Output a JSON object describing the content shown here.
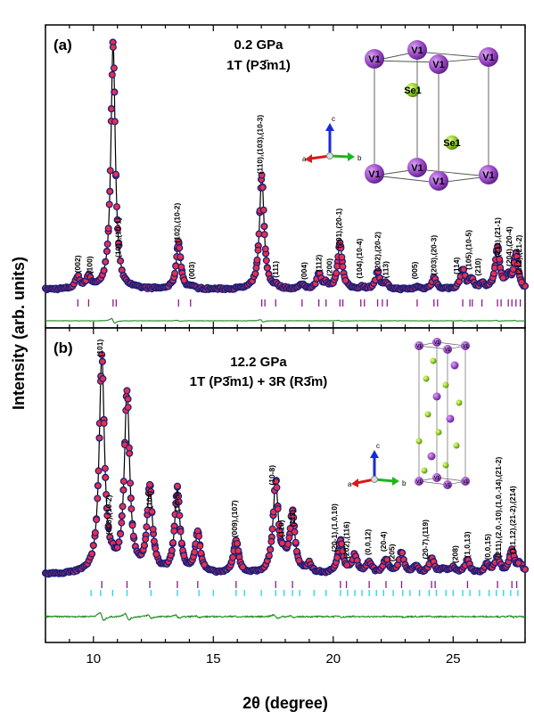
{
  "chart_data": {
    "type": "scatter",
    "xlabel": "2θ (degree)",
    "ylabel": "Intensity (arb. units)",
    "xlim": [
      8,
      28
    ],
    "xticks": [
      10,
      15,
      20,
      25
    ],
    "colors": {
      "observed_fill": "#e8304a",
      "observed_edge": "#1c1f7a",
      "calculated": "#000000",
      "difference": "#1c8a1c",
      "phase_1T": "#8b1a8b",
      "phase_3R": "#18d8ee"
    },
    "panels": [
      {
        "label": "(a)",
        "pressure": "0.2 GPa",
        "phase_line": "1T (P3̄m1)",
        "peaks": [
          {
            "x": 9.35,
            "h": 0.05
          },
          {
            "x": 9.8,
            "h": 0.05
          },
          {
            "x": 10.82,
            "h": 1.0
          },
          {
            "x": 13.55,
            "h": 0.19
          },
          {
            "x": 14.1,
            "h": 0.01
          },
          {
            "x": 17.02,
            "h": 0.47
          },
          {
            "x": 17.6,
            "h": 0.01
          },
          {
            "x": 18.7,
            "h": 0.02
          },
          {
            "x": 19.4,
            "h": 0.06
          },
          {
            "x": 19.7,
            "h": 0.02
          },
          {
            "x": 20.28,
            "h": 0.19
          },
          {
            "x": 21.2,
            "h": 0.01
          },
          {
            "x": 21.85,
            "h": 0.07
          },
          {
            "x": 22.2,
            "h": 0.02
          },
          {
            "x": 23.5,
            "h": 0.01
          },
          {
            "x": 24.2,
            "h": 0.05
          },
          {
            "x": 25.4,
            "h": 0.08
          },
          {
            "x": 25.75,
            "h": 0.04
          },
          {
            "x": 26.2,
            "h": 0.02
          },
          {
            "x": 26.85,
            "h": 0.17
          },
          {
            "x": 27.3,
            "h": 0.05
          },
          {
            "x": 27.62,
            "h": 0.14
          }
        ],
        "ticks_1T": [
          9.35,
          9.8,
          10.82,
          10.95,
          13.55,
          14.05,
          17.02,
          17.15,
          17.6,
          18.7,
          19.4,
          19.7,
          20.28,
          20.4,
          21.15,
          21.3,
          21.85,
          22.05,
          22.25,
          23.5,
          24.2,
          24.35,
          25.4,
          25.7,
          25.8,
          26.2,
          26.85,
          27.0,
          27.3,
          27.45,
          27.62,
          27.8
        ],
        "annotations": [
          {
            "x": 9.45,
            "text": "(002)"
          },
          {
            "x": 9.95,
            "text": "(100)"
          },
          {
            "x": 11.15,
            "text": "(101),(10-1)"
          },
          {
            "x": 13.6,
            "text": "(102),(10-2)"
          },
          {
            "x": 14.2,
            "text": "(003)"
          },
          {
            "x": 17.05,
            "text": "(110),(103),(10-3)"
          },
          {
            "x": 17.7,
            "text": "(111)"
          },
          {
            "x": 18.9,
            "text": "(004)"
          },
          {
            "x": 19.5,
            "text": "(112)"
          },
          {
            "x": 19.95,
            "text": "(200)"
          },
          {
            "x": 20.35,
            "text": "(201),(20-1)"
          },
          {
            "x": 21.2,
            "text": "(104),(10-4)"
          },
          {
            "x": 21.95,
            "text": "(202),(20-2)"
          },
          {
            "x": 22.3,
            "text": "(113)"
          },
          {
            "x": 23.5,
            "text": "(005)"
          },
          {
            "x": 24.3,
            "text": "(203),(20-3)"
          },
          {
            "x": 25.25,
            "text": "(114)"
          },
          {
            "x": 25.75,
            "text": "(105),(10-5)"
          },
          {
            "x": 26.15,
            "text": "(210)"
          },
          {
            "x": 26.95,
            "text": "(211),(21-1)"
          },
          {
            "x": 27.45,
            "text": "(204),(20-4)"
          },
          {
            "x": 27.85,
            "text": "(212),(21-2)"
          }
        ],
        "structure_atoms": [
          "V1",
          "V1",
          "V1",
          "V1",
          "V1",
          "V1",
          "V1",
          "V1",
          "Se1",
          "Se1"
        ],
        "axes_labels": [
          "a",
          "b",
          "c"
        ]
      },
      {
        "label": "(b)",
        "pressure": "12.2 GPa",
        "phase_line": "1T (P3̄m1) + 3R (R3̄m)",
        "peaks": [
          {
            "x": 10.35,
            "h": 0.94
          },
          {
            "x": 10.8,
            "h": 0.02
          },
          {
            "x": 11.4,
            "h": 0.78
          },
          {
            "x": 12.35,
            "h": 0.37
          },
          {
            "x": 13.5,
            "h": 0.36
          },
          {
            "x": 14.35,
            "h": 0.17
          },
          {
            "x": 15.95,
            "h": 0.14
          },
          {
            "x": 17.6,
            "h": 0.39
          },
          {
            "x": 17.95,
            "h": 0.05
          },
          {
            "x": 18.3,
            "h": 0.25
          },
          {
            "x": 19.0,
            "h": 0.04
          },
          {
            "x": 20.3,
            "h": 0.14
          },
          {
            "x": 20.9,
            "h": 0.08
          },
          {
            "x": 21.5,
            "h": 0.05
          },
          {
            "x": 22.2,
            "h": 0.06
          },
          {
            "x": 22.85,
            "h": 0.09
          },
          {
            "x": 23.45,
            "h": 0.03
          },
          {
            "x": 24.1,
            "h": 0.07
          },
          {
            "x": 24.6,
            "h": 0.02
          },
          {
            "x": 25.0,
            "h": 0.03
          },
          {
            "x": 25.6,
            "h": 0.06
          },
          {
            "x": 26.4,
            "h": 0.04
          },
          {
            "x": 26.85,
            "h": 0.07
          },
          {
            "x": 27.45,
            "h": 0.1
          },
          {
            "x": 27.8,
            "h": 0.04
          }
        ],
        "ticks_1T": [
          10.35,
          11.4,
          12.35,
          13.5,
          14.35,
          15.95,
          17.6,
          18.3,
          20.3,
          20.55,
          21.5,
          22.2,
          22.85,
          24.1,
          24.25,
          25.6,
          26.85,
          27.45,
          27.65
        ],
        "ticks_3R": [
          9.9,
          10.3,
          10.8,
          11.4,
          12.4,
          13.5,
          14.4,
          15.0,
          15.95,
          16.3,
          17.0,
          17.6,
          17.95,
          18.3,
          18.6,
          19.2,
          19.7,
          20.3,
          20.6,
          20.9,
          21.2,
          21.5,
          21.8,
          22.1,
          22.5,
          22.9,
          23.2,
          23.6,
          24.0,
          24.3,
          24.7,
          25.0,
          25.4,
          25.7,
          26.1,
          26.5,
          26.8,
          27.1,
          27.4,
          27.7
        ],
        "annotations": [
          {
            "x": 10.38,
            "text": "(101)"
          },
          {
            "x": 10.75,
            "text": "(006),(10-2)"
          },
          {
            "x": 12.45,
            "text": "(104)"
          },
          {
            "x": 13.6,
            "text": "(10-5)"
          },
          {
            "x": 16.0,
            "text": "(009),(107)"
          },
          {
            "x": 17.55,
            "text": "(10-8)"
          },
          {
            "x": 17.95,
            "text": "(110)"
          },
          {
            "x": 18.4,
            "text": "(113)"
          },
          {
            "x": 20.15,
            "text": "(20-1),(1,0,10)"
          },
          {
            "x": 20.65,
            "text": "(202),(116)"
          },
          {
            "x": 21.55,
            "text": "(0,0,12)"
          },
          {
            "x": 22.2,
            "text": "(20-4)"
          },
          {
            "x": 22.55,
            "text": "(205)"
          },
          {
            "x": 23.95,
            "text": "(20-7),(119)"
          },
          {
            "x": 25.2,
            "text": "(208)"
          },
          {
            "x": 25.7,
            "text": "(1,0,13)"
          },
          {
            "x": 26.55,
            "text": "(0,0,15)"
          },
          {
            "x": 27.0,
            "text": "(211),(2,0,-10),(1,0,-14),(21-2)"
          },
          {
            "x": 27.6,
            "text": "(1,1,12),(21-2),(214)"
          }
        ],
        "structure_atoms": [
          "V1",
          "V1",
          "V1",
          "V1",
          "V1",
          "V1",
          "V1",
          "V1"
        ],
        "axes_labels": [
          "a",
          "b",
          "c"
        ]
      }
    ]
  }
}
